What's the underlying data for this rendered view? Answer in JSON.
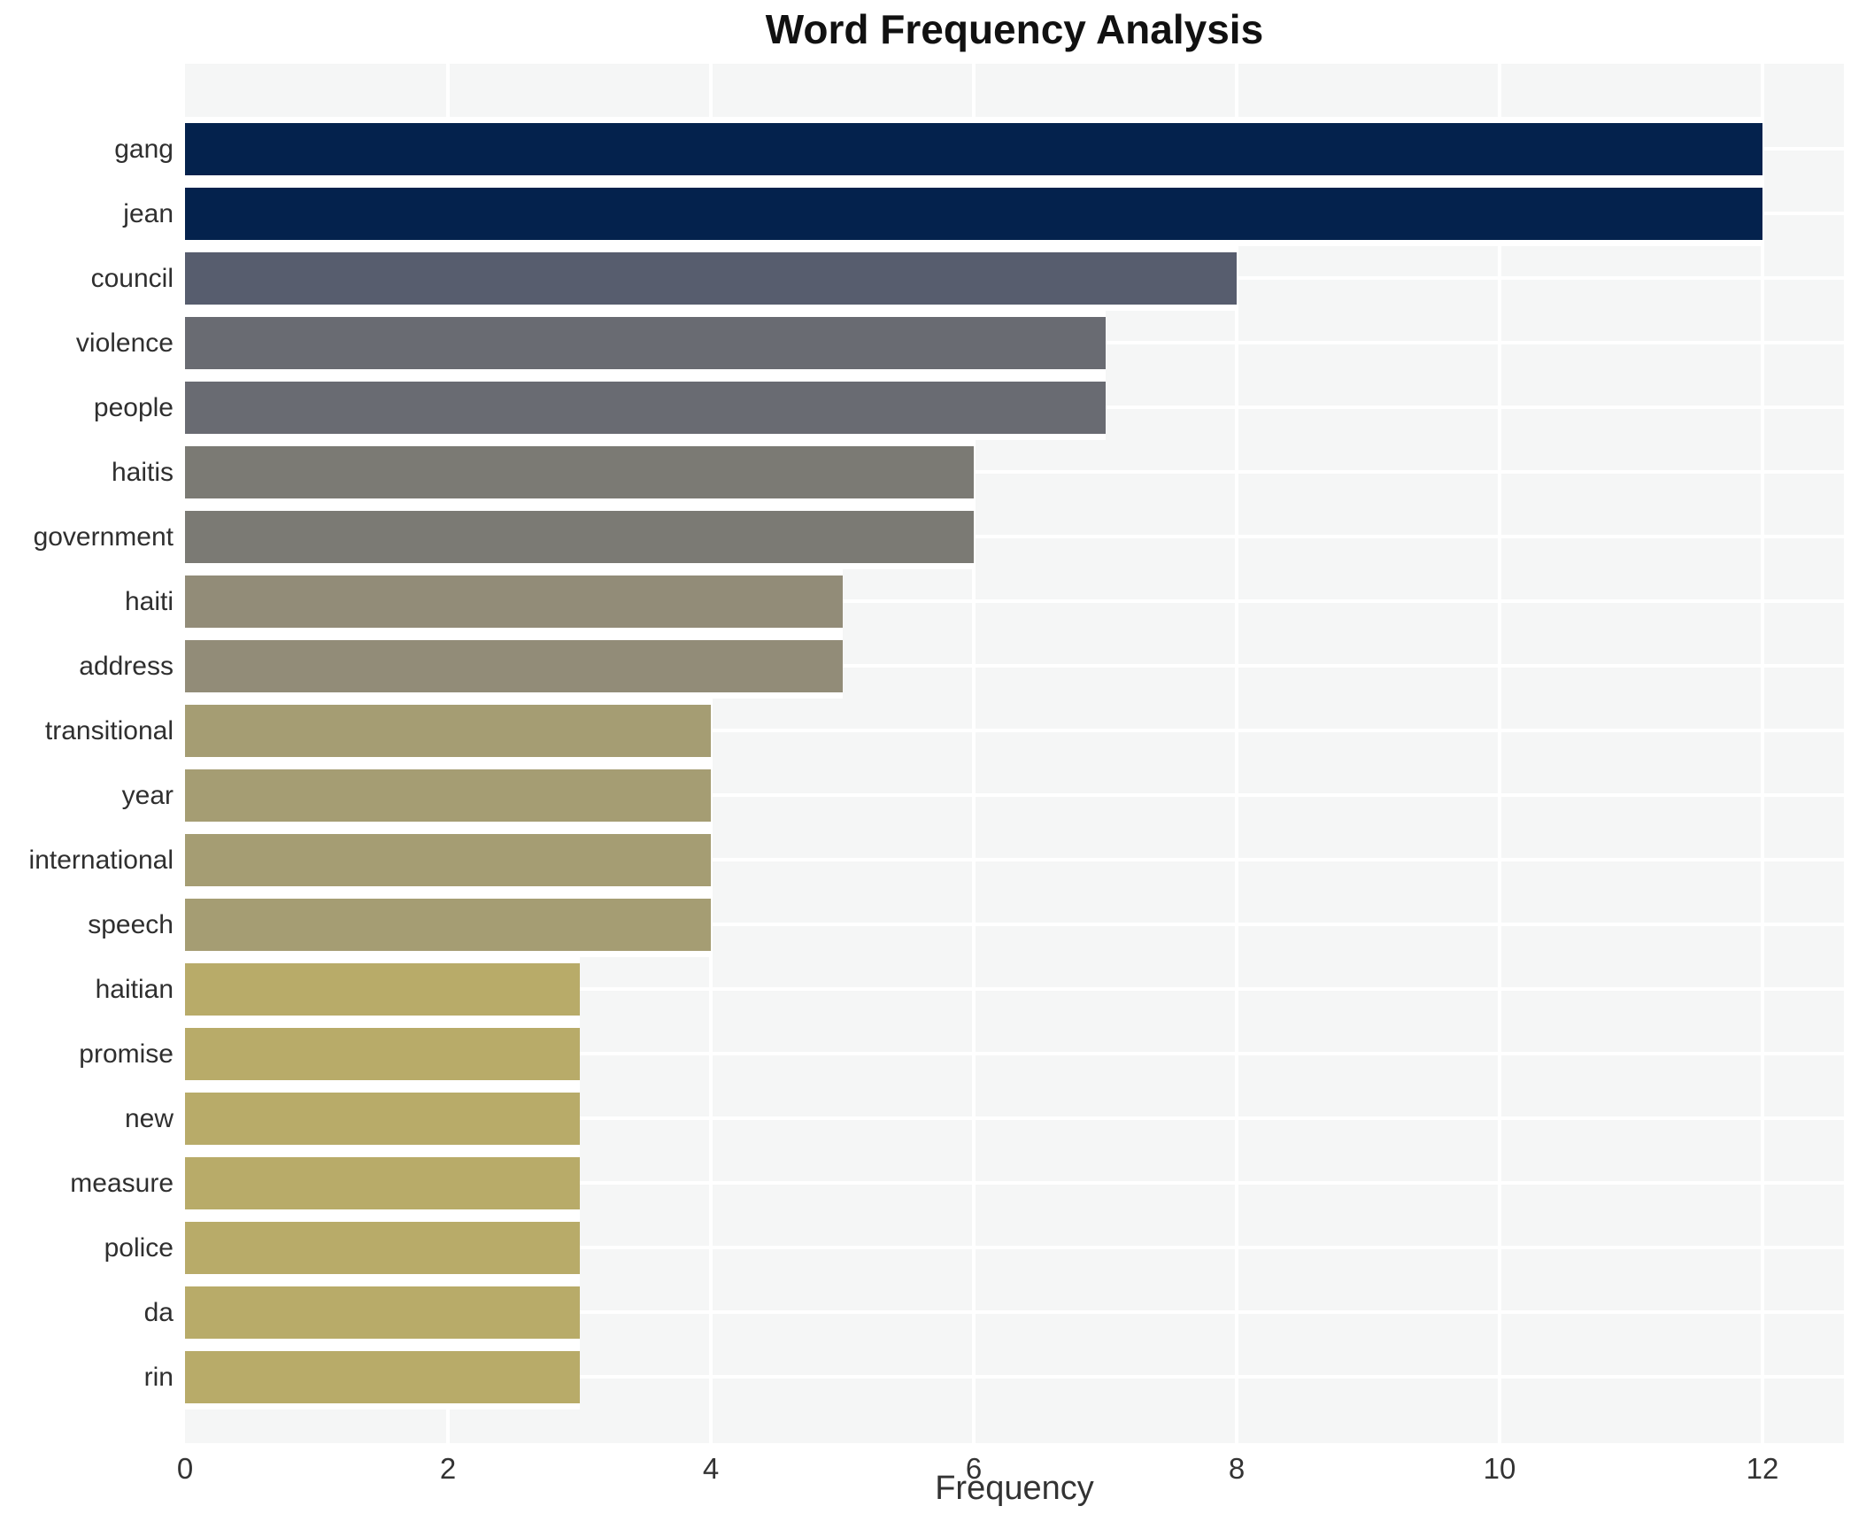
{
  "title": "Word Frequency Analysis",
  "xaxis_label": "Frequency",
  "chart_data": {
    "type": "bar",
    "orientation": "horizontal",
    "title": "Word Frequency Analysis",
    "xlabel": "Frequency",
    "ylabel": "",
    "categories": [
      "gang",
      "jean",
      "council",
      "violence",
      "people",
      "haitis",
      "government",
      "haiti",
      "address",
      "transitional",
      "year",
      "international",
      "speech",
      "haitian",
      "promise",
      "new",
      "measure",
      "police",
      "da",
      "rin"
    ],
    "values": [
      12,
      12,
      8,
      7,
      7,
      6,
      6,
      5,
      5,
      4,
      4,
      4,
      4,
      3,
      3,
      3,
      3,
      3,
      3,
      3
    ],
    "bar_colors": [
      "#04224d",
      "#04224d",
      "#575d6e",
      "#696b72",
      "#696b72",
      "#7b7a74",
      "#7b7a74",
      "#928c78",
      "#928c78",
      "#a59d73",
      "#a59d73",
      "#a59d73",
      "#a59d73",
      "#b8ab69",
      "#b8ab69",
      "#b8ab69",
      "#b8ab69",
      "#b8ab69",
      "#b8ab69",
      "#b8ab69"
    ],
    "xticks": [
      0,
      2,
      4,
      6,
      8,
      10,
      12
    ],
    "xlim": [
      0,
      12.62
    ],
    "grid": true,
    "legend": false,
    "panel_bg": "#f5f6f6",
    "figure_bg": "#ffffff",
    "gridline_color": "#ffffff",
    "bar_edge_color": "#ffffff",
    "title_color": "#111111",
    "label_color": "#2f2f2f",
    "tick_color": "#333333"
  }
}
